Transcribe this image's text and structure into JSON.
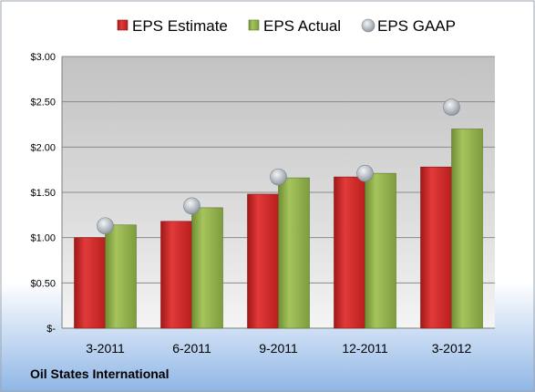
{
  "chart_data": {
    "type": "bar",
    "categories": [
      "3-2011",
      "6-2011",
      "9-2011",
      "12-2011",
      "3-2012"
    ],
    "series": [
      {
        "name": "EPS Estimate",
        "type": "bar",
        "color": "#d42a2a",
        "values": [
          1.0,
          1.18,
          1.48,
          1.67,
          1.78
        ]
      },
      {
        "name": "EPS Actual",
        "type": "bar",
        "color": "#8fb04a",
        "values": [
          1.14,
          1.33,
          1.66,
          1.71,
          2.2
        ]
      },
      {
        "name": "EPS GAAP",
        "type": "scatter",
        "color": "#b8bec6",
        "values": [
          1.13,
          1.35,
          1.67,
          1.71,
          2.44
        ]
      }
    ],
    "ylim": [
      0,
      3
    ],
    "yticks": [
      {
        "value": 0,
        "label": "$-"
      },
      {
        "value": 0.5,
        "label": "$0.50"
      },
      {
        "value": 1.0,
        "label": "$1.00"
      },
      {
        "value": 1.5,
        "label": "$1.50"
      },
      {
        "value": 2.0,
        "label": "$2.00"
      },
      {
        "value": 2.5,
        "label": "$2.50"
      },
      {
        "value": 3.0,
        "label": "$3.00"
      }
    ],
    "grid": true,
    "legend": "top"
  },
  "company_name": "Oil States International"
}
